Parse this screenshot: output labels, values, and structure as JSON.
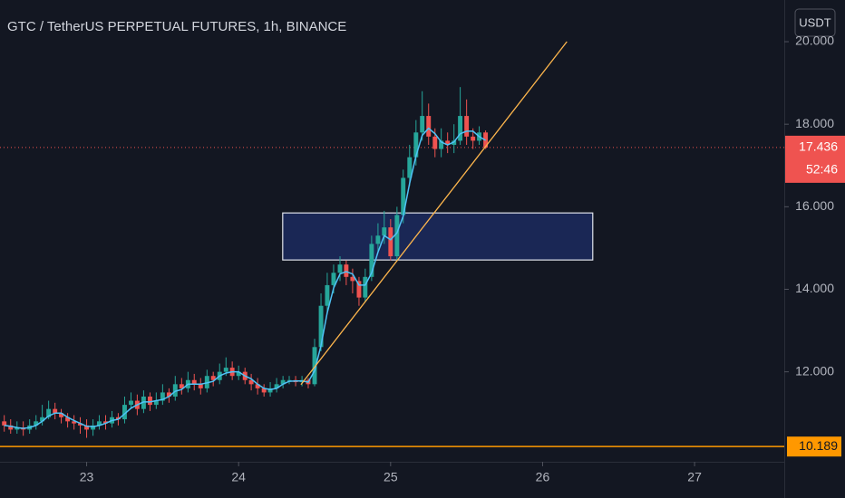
{
  "chart_data": {
    "type": "candlestick",
    "title": "GTC / TetherUS PERPETUAL FUTURES, 1h, BINANCE",
    "x": [
      22.458,
      22.5,
      22.542,
      22.583,
      22.625,
      22.667,
      22.708,
      22.75,
      22.792,
      22.833,
      22.875,
      22.917,
      22.958,
      23,
      23.042,
      23.083,
      23.125,
      23.167,
      23.208,
      23.25,
      23.292,
      23.333,
      23.375,
      23.417,
      23.458,
      23.5,
      23.542,
      23.583,
      23.625,
      23.667,
      23.708,
      23.75,
      23.792,
      23.833,
      23.875,
      23.917,
      23.958,
      24,
      24.042,
      24.083,
      24.125,
      24.167,
      24.208,
      24.25,
      24.292,
      24.333,
      24.375,
      24.417,
      24.458,
      24.5,
      24.542,
      24.583,
      24.625,
      24.667,
      24.708,
      24.75,
      24.792,
      24.833,
      24.875,
      24.917,
      24.958,
      25,
      25.042,
      25.083,
      25.125,
      25.167,
      25.208,
      25.25,
      25.292,
      25.333,
      25.375,
      25.417,
      25.458,
      25.5,
      25.542,
      25.583,
      25.625
    ],
    "open": [
      10.8,
      10.7,
      10.6,
      10.65,
      10.6,
      10.7,
      10.8,
      10.9,
      11.1,
      11.0,
      10.9,
      10.8,
      10.75,
      10.7,
      10.6,
      10.7,
      10.8,
      10.75,
      10.9,
      10.85,
      11.2,
      11.3,
      11.1,
      11.4,
      11.2,
      11.3,
      11.5,
      11.4,
      11.7,
      11.6,
      11.8,
      11.7,
      11.6,
      11.9,
      11.8,
      12.0,
      12.1,
      11.9,
      12.0,
      11.8,
      11.7,
      11.6,
      11.5,
      11.6,
      11.7,
      11.8,
      11.8,
      11.75,
      11.8,
      11.7,
      12.6,
      13.6,
      14.1,
      14.4,
      14.6,
      14.3,
      14.2,
      13.8,
      14.3,
      15.1,
      15.3,
      15.5,
      14.8,
      15.8,
      16.7,
      17.2,
      17.8,
      18.2,
      17.7,
      17.4,
      17.6,
      17.5,
      17.6,
      18.2,
      17.7,
      17.6,
      17.8
    ],
    "high": [
      10.95,
      10.85,
      10.8,
      10.8,
      10.85,
      10.95,
      11.2,
      11.3,
      11.25,
      11.1,
      11.0,
      10.95,
      10.9,
      10.85,
      10.85,
      10.95,
      10.95,
      11.05,
      11.0,
      11.4,
      11.5,
      11.45,
      11.55,
      11.5,
      11.5,
      11.7,
      11.6,
      11.9,
      11.85,
      12.0,
      11.95,
      11.85,
      12.05,
      12.0,
      12.2,
      12.35,
      12.25,
      12.15,
      12.1,
      11.95,
      11.85,
      11.7,
      11.75,
      11.85,
      11.9,
      11.9,
      11.9,
      11.9,
      11.85,
      12.8,
      13.9,
      14.4,
      14.6,
      14.8,
      14.7,
      14.5,
      14.3,
      14.5,
      15.3,
      15.6,
      15.9,
      15.7,
      16.0,
      16.9,
      17.5,
      18.1,
      18.8,
      18.5,
      17.9,
      17.9,
      17.8,
      18.0,
      18.9,
      18.6,
      17.9,
      17.95,
      17.85
    ],
    "low": [
      10.55,
      10.5,
      10.5,
      10.45,
      10.5,
      10.6,
      10.7,
      10.85,
      10.85,
      10.75,
      10.65,
      10.6,
      10.5,
      10.4,
      10.45,
      10.6,
      10.6,
      10.65,
      10.7,
      10.75,
      11.1,
      10.95,
      11.0,
      11.05,
      11.1,
      11.2,
      11.25,
      11.3,
      11.45,
      11.5,
      11.55,
      11.45,
      11.5,
      11.65,
      11.7,
      11.9,
      11.8,
      11.8,
      11.7,
      11.55,
      11.45,
      11.4,
      11.4,
      11.5,
      11.6,
      11.7,
      11.65,
      11.65,
      11.6,
      11.65,
      12.5,
      13.4,
      13.9,
      14.2,
      14.1,
      13.9,
      13.6,
      13.7,
      14.2,
      14.9,
      15.1,
      14.7,
      14.7,
      15.6,
      16.5,
      17.0,
      17.6,
      17.5,
      17.2,
      17.2,
      17.3,
      17.3,
      17.5,
      17.5,
      17.4,
      17.5,
      17.4
    ],
    "close": [
      10.7,
      10.6,
      10.65,
      10.6,
      10.7,
      10.8,
      10.9,
      11.1,
      11.0,
      10.9,
      10.8,
      10.75,
      10.7,
      10.6,
      10.7,
      10.8,
      10.75,
      10.9,
      10.85,
      11.2,
      11.3,
      11.1,
      11.4,
      11.2,
      11.3,
      11.5,
      11.4,
      11.7,
      11.6,
      11.8,
      11.7,
      11.6,
      11.9,
      11.8,
      12.0,
      12.1,
      11.9,
      12.0,
      11.8,
      11.7,
      11.6,
      11.5,
      11.6,
      11.7,
      11.8,
      11.8,
      11.75,
      11.8,
      11.7,
      12.6,
      13.6,
      14.1,
      14.4,
      14.6,
      14.3,
      14.2,
      13.8,
      14.3,
      15.1,
      15.3,
      15.5,
      14.8,
      15.8,
      16.7,
      17.2,
      17.8,
      18.2,
      17.7,
      17.4,
      17.6,
      17.5,
      17.6,
      18.2,
      17.7,
      17.6,
      17.8,
      17.436
    ],
    "up_color": "#26a69a",
    "down_color": "#ef5350",
    "ma": {
      "color": "#4fc3f7",
      "values": [
        10.7,
        10.68,
        10.65,
        10.63,
        10.65,
        10.7,
        10.8,
        10.93,
        11.0,
        11.0,
        10.9,
        10.82,
        10.75,
        10.68,
        10.67,
        10.7,
        10.75,
        10.82,
        10.85,
        10.98,
        11.12,
        11.2,
        11.27,
        11.27,
        11.3,
        11.33,
        11.4,
        11.53,
        11.57,
        11.7,
        11.7,
        11.7,
        11.73,
        11.77,
        11.9,
        11.97,
        12.0,
        12.0,
        11.9,
        11.83,
        11.7,
        11.6,
        11.57,
        11.6,
        11.7,
        11.77,
        11.78,
        11.78,
        11.75,
        12.03,
        12.63,
        13.43,
        14.03,
        14.37,
        14.43,
        14.37,
        14.1,
        14.1,
        14.4,
        14.9,
        15.3,
        15.2,
        15.37,
        15.77,
        16.57,
        17.23,
        17.73,
        17.9,
        17.77,
        17.57,
        17.5,
        17.57,
        17.77,
        17.83,
        17.83,
        17.7,
        17.61
      ]
    },
    "xlim": [
      22.43,
      27.59
    ],
    "xticks": [
      23,
      24,
      25,
      26,
      27
    ],
    "ylim": [
      9.82,
      21.01
    ],
    "yticks": [
      {
        "value": 12,
        "label": "12.000"
      },
      {
        "value": 14,
        "label": "14.000"
      },
      {
        "value": 16,
        "label": "16.000"
      },
      {
        "value": 18,
        "label": "18.000"
      },
      {
        "value": 20,
        "label": "20.000"
      }
    ],
    "grid": false,
    "currency": "USDT",
    "last_price": 17.436,
    "countdown": "52:46",
    "horizontal_level": {
      "value": 10.189,
      "color": "#ff9800"
    },
    "rectangle": {
      "x": [
        24.29,
        26.33
      ],
      "y": [
        14.71,
        15.85
      ],
      "color": "#1c2a5e"
    },
    "trendline": {
      "x": [
        24.41,
        26.16
      ],
      "y": [
        11.69,
        20.0
      ],
      "color": "#ffb74d"
    }
  }
}
